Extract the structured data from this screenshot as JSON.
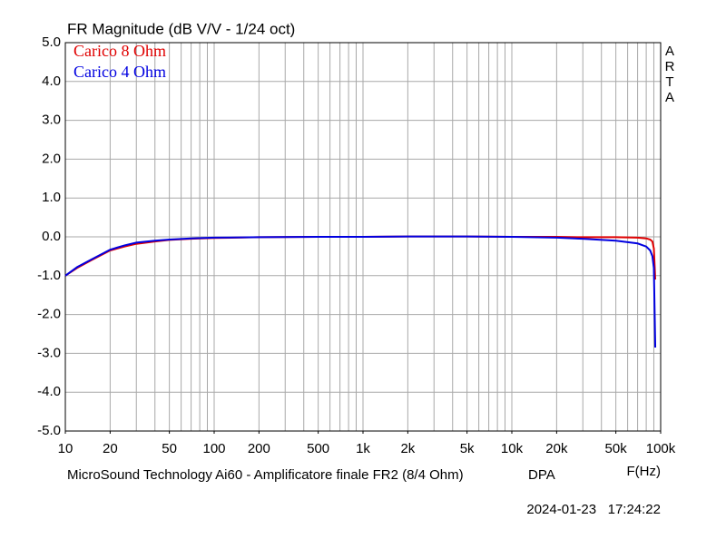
{
  "chart_data": {
    "type": "line",
    "title": "FR Magnitude (dB V/V - 1/24 oct)",
    "side_label": "ARTA",
    "footer": "MicroSound Technology Ai60 - Amplificatore finale FR2 (8/4 Ohm)",
    "footer_tag": "DPA",
    "xlabel": "F(Hz)",
    "timestamp": "2024-01-23   17:24:22",
    "xscale": "log",
    "grid": true,
    "legend": "top-left",
    "xlim": [
      10,
      100000
    ],
    "ylim": [
      -5,
      5
    ],
    "xticks": [
      10,
      20,
      50,
      100,
      200,
      500,
      {
        "value": 1000,
        "label": "1k"
      },
      {
        "value": 2000,
        "label": "2k"
      },
      {
        "value": 5000,
        "label": "5k"
      },
      {
        "value": 10000,
        "label": "10k"
      },
      {
        "value": 20000,
        "label": "20k"
      },
      {
        "value": 50000,
        "label": "50k"
      },
      {
        "value": 100000,
        "label": "100k"
      }
    ],
    "xgrid": [
      10,
      20,
      30,
      40,
      50,
      60,
      70,
      80,
      90,
      100,
      200,
      300,
      400,
      500,
      600,
      700,
      800,
      900,
      1000,
      2000,
      3000,
      4000,
      5000,
      6000,
      7000,
      8000,
      9000,
      10000,
      20000,
      30000,
      40000,
      50000,
      60000,
      70000,
      80000,
      90000,
      100000
    ],
    "yticks": [
      {
        "value": 5,
        "label": "5.0"
      },
      {
        "value": 4,
        "label": "4.0"
      },
      {
        "value": 3,
        "label": "3.0"
      },
      {
        "value": 2,
        "label": "2.0"
      },
      {
        "value": 1,
        "label": "1.0"
      },
      {
        "value": 0,
        "label": "0.0"
      },
      {
        "value": -1,
        "label": "-1.0"
      },
      {
        "value": -2,
        "label": "-2.0"
      },
      {
        "value": -3,
        "label": "-3.0"
      },
      {
        "value": -4,
        "label": "-4.0"
      },
      {
        "value": -5,
        "label": "-5.0"
      }
    ],
    "x": [
      10,
      12,
      15,
      20,
      25,
      30,
      40,
      50,
      70,
      100,
      200,
      500,
      1000,
      2000,
      5000,
      10000,
      20000,
      30000,
      50000,
      70000,
      80000,
      85000,
      88000,
      90000,
      92000
    ],
    "series": [
      {
        "name": "Carico 8 Ohm",
        "color": "#e00000",
        "values": [
          -1.0,
          -0.8,
          -0.6,
          -0.35,
          -0.25,
          -0.18,
          -0.12,
          -0.08,
          -0.05,
          -0.03,
          -0.01,
          0,
          0,
          0.01,
          0.01,
          0,
          0,
          -0.01,
          -0.01,
          -0.02,
          -0.04,
          -0.07,
          -0.12,
          -0.3,
          -1.1
        ]
      },
      {
        "name": "Carico 4 Ohm",
        "color": "#0000e0",
        "values": [
          -1.0,
          -0.78,
          -0.58,
          -0.33,
          -0.22,
          -0.15,
          -0.1,
          -0.07,
          -0.04,
          -0.02,
          -0.01,
          0,
          0,
          0.01,
          0.01,
          0,
          -0.02,
          -0.05,
          -0.1,
          -0.17,
          -0.25,
          -0.35,
          -0.5,
          -0.8,
          -2.85
        ]
      }
    ]
  }
}
